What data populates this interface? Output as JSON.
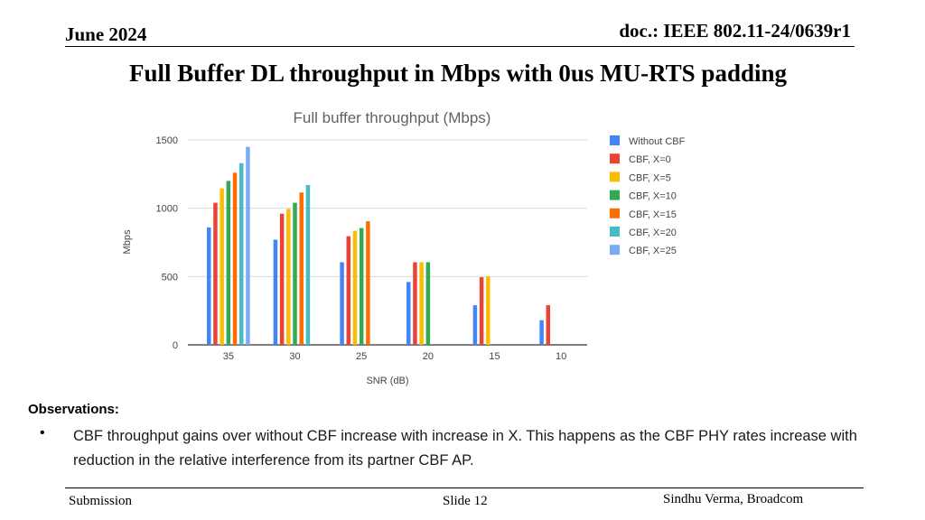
{
  "header": {
    "date": "June 2024",
    "doc": "doc.: IEEE 802.11-24/0639r1"
  },
  "slide_title": "Full Buffer DL throughput in Mbps with 0us MU-RTS padding",
  "chart_data": {
    "type": "bar",
    "title": "Full buffer throughput (Mbps)",
    "xlabel": "SNR (dB)",
    "ylabel": "Mbps",
    "ylim": [
      0,
      1500
    ],
    "yticks": [
      0,
      500,
      1000,
      1500
    ],
    "grid": true,
    "legend_position": "right",
    "categories": [
      "35",
      "30",
      "25",
      "20",
      "15",
      "10"
    ],
    "series": [
      {
        "name": "Without CBF",
        "color": "#4285f4",
        "values": [
          860,
          770,
          605,
          460,
          290,
          180
        ]
      },
      {
        "name": "CBF, X=0",
        "color": "#ea4335",
        "values": [
          1040,
          960,
          795,
          605,
          495,
          290
        ]
      },
      {
        "name": "CBF, X=5",
        "color": "#fbbc04",
        "values": [
          1145,
          995,
          835,
          605,
          500,
          null
        ]
      },
      {
        "name": "CBF, X=10",
        "color": "#34a853",
        "values": [
          1200,
          1040,
          855,
          605,
          null,
          null
        ]
      },
      {
        "name": "CBF, X=15",
        "color": "#ff6d01",
        "values": [
          1260,
          1115,
          905,
          null,
          null,
          null
        ]
      },
      {
        "name": "CBF, X=20",
        "color": "#46bdc6",
        "values": [
          1330,
          1170,
          null,
          null,
          null,
          null
        ]
      },
      {
        "name": "CBF, X=25",
        "color": "#7baaf7",
        "values": [
          1450,
          null,
          null,
          null,
          null,
          null
        ]
      }
    ]
  },
  "observations": {
    "heading": "Observations:",
    "bullet_symbol": "•",
    "bullet": "CBF throughput gains over without CBF increase with increase in X. This happens as the CBF PHY rates increase with reduction in the relative interference from its partner CBF AP."
  },
  "footer": {
    "left": "Submission",
    "middle": "Slide 12",
    "right": "Sindhu Verma, Broadcom"
  }
}
